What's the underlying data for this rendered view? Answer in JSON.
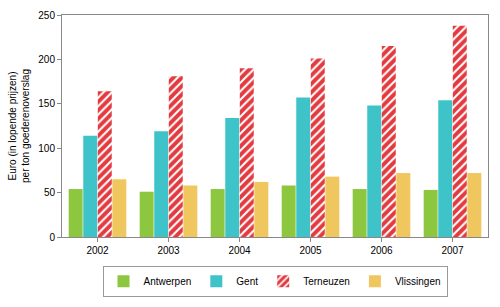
{
  "chart_data": {
    "type": "bar",
    "y_label": "Euro (in lopende prijzen)\nper ton goederenoverslag",
    "categories": [
      "2002",
      "2003",
      "2004",
      "2005",
      "2006",
      "2007"
    ],
    "series": [
      {
        "name": "Antwerpen",
        "color": "#8dc63f",
        "values": [
          54,
          51,
          54,
          58,
          54,
          53
        ]
      },
      {
        "name": "Gent",
        "color": "#3ec4c8",
        "values": [
          114,
          119,
          134,
          157,
          148,
          154
        ]
      },
      {
        "name": "Terneuzen",
        "color": "#e23a3f",
        "marker": "hatched",
        "values": [
          164,
          181,
          190,
          201,
          215,
          238
        ]
      },
      {
        "name": "Vlissingen",
        "color": "#f0c75e",
        "values": [
          65,
          58,
          62,
          68,
          72,
          72
        ]
      }
    ],
    "ylim": [
      0,
      250
    ],
    "yticks": [
      0,
      50,
      100,
      150,
      200,
      250
    ],
    "grid": false,
    "legend": "bottom"
  }
}
